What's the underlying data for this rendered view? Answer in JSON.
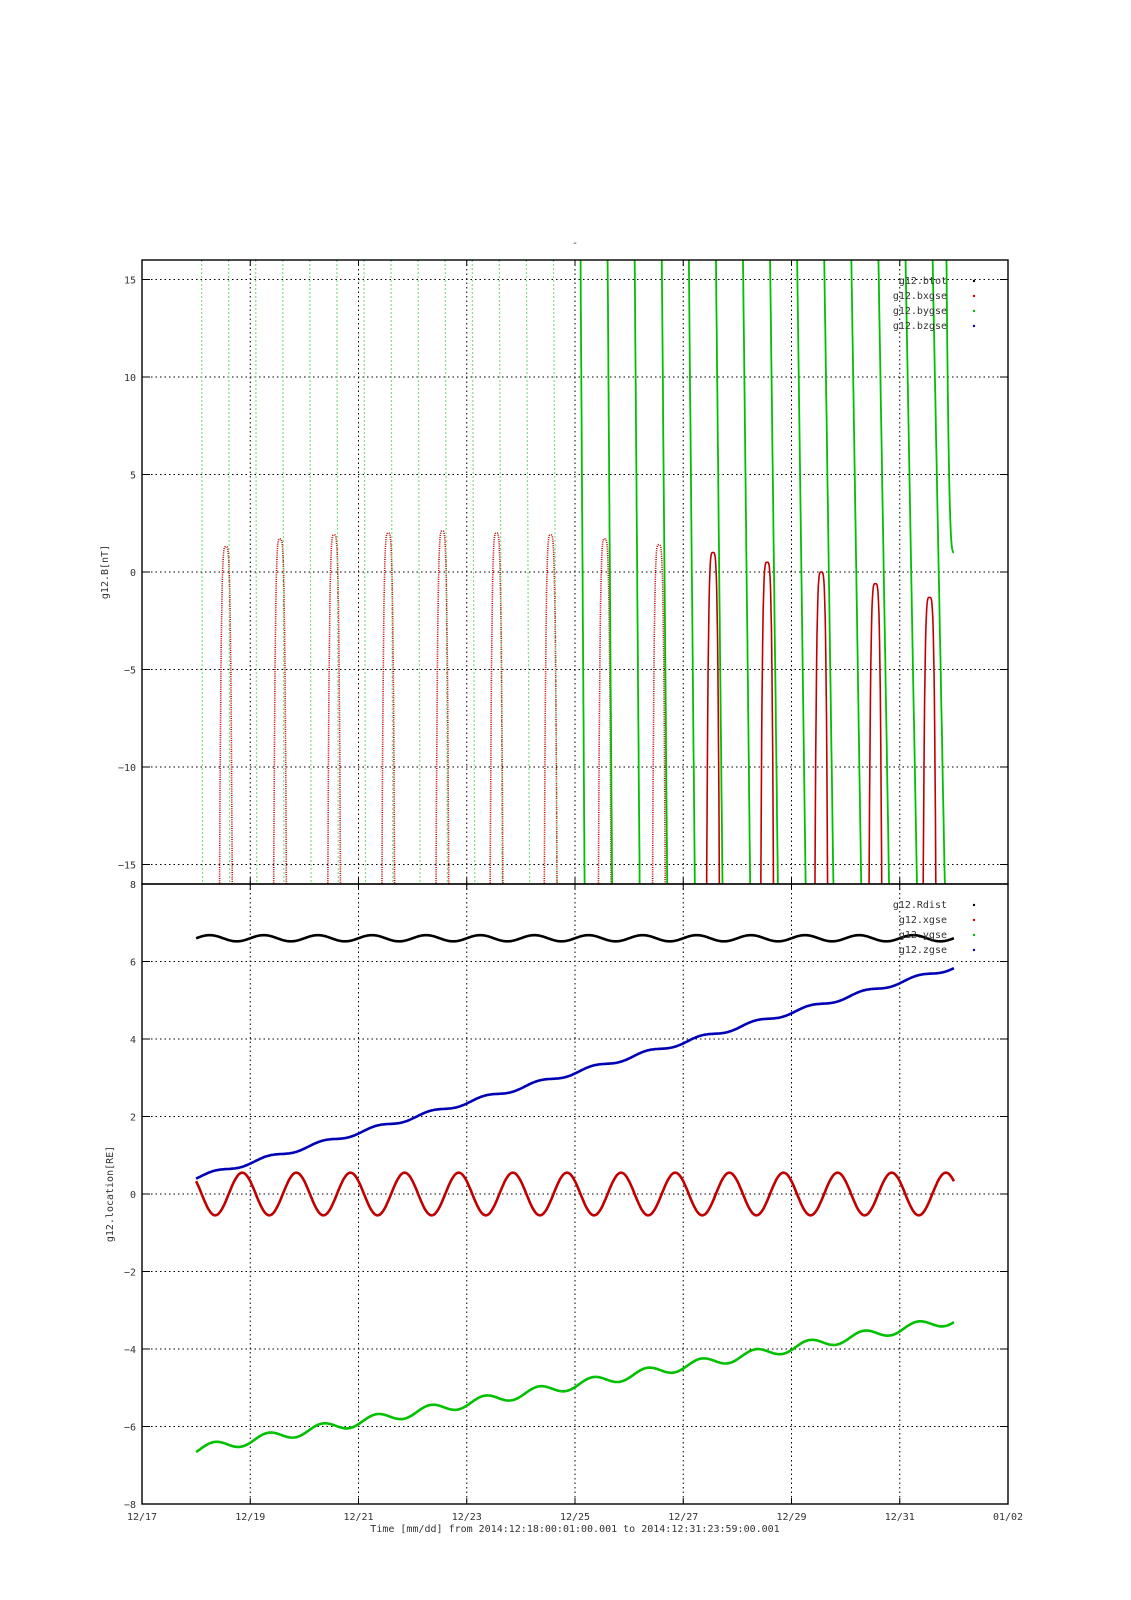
{
  "figure": {
    "title": "-",
    "xlabel": "Time [mm/dd]  from 2014:12:18:00:01:00.001  to  2014:12:31:23:59:00.001",
    "colors": {
      "black": "#000000",
      "red": "#c00000",
      "green": "#00c000",
      "blue": "#0000b4"
    }
  },
  "chart_data": [
    {
      "type": "line",
      "ylabel": "g12.B[nT]",
      "xlim": [
        "12/17",
        "01/02"
      ],
      "ylim": [
        -16,
        16
      ],
      "y_ticks": [
        -15,
        -10,
        -5,
        0,
        5,
        10,
        15
      ],
      "x_ticks": [
        "12/17",
        "12/19",
        "12/21",
        "12/23",
        "12/25",
        "12/27",
        "12/29",
        "12/31",
        "01/02"
      ],
      "grid": true,
      "legend_position": "top-right",
      "series": [
        {
          "name": "g12.btot",
          "color": "black",
          "note": "off-scale (above range)"
        },
        {
          "name": "g12.bxgse",
          "color": "red",
          "peaks": [
            {
              "date": "12/18",
              "value": 1.3
            },
            {
              "date": "12/19",
              "value": 1.7
            },
            {
              "date": "12/20",
              "value": 1.9
            },
            {
              "date": "12/21",
              "value": 2.0
            },
            {
              "date": "12/22",
              "value": 2.1
            },
            {
              "date": "12/23",
              "value": 2.0
            },
            {
              "date": "12/24",
              "value": 1.9
            },
            {
              "date": "12/25",
              "value": 1.7
            },
            {
              "date": "12/26",
              "value": 1.4
            },
            {
              "date": "12/27",
              "value": 1.0
            },
            {
              "date": "12/28",
              "value": 0.5
            },
            {
              "date": "12/29",
              "value": 0.0
            },
            {
              "date": "12/30",
              "value": -0.6
            },
            {
              "date": "12/31",
              "value": -1.3
            }
          ]
        },
        {
          "name": "g12.bygse",
          "color": "green",
          "end_value": 1.0
        },
        {
          "name": "g12.bzgse",
          "color": "blue",
          "note": "off-scale"
        }
      ]
    },
    {
      "type": "line",
      "ylabel": "g12.location[RE]",
      "xlim": [
        "12/17",
        "01/02"
      ],
      "ylim": [
        -8,
        8
      ],
      "y_ticks": [
        -8,
        -6,
        -4,
        -2,
        0,
        2,
        4,
        6,
        8
      ],
      "x_ticks": [
        "12/17",
        "12/19",
        "12/21",
        "12/23",
        "12/25",
        "12/27",
        "12/29",
        "12/31",
        "01/02"
      ],
      "x_tick_labels": [
        "12/17",
        "12/19",
        "12/21",
        "12/23",
        "12/25",
        "12/27",
        "12/29",
        "12/31",
        "01/02"
      ],
      "grid": true,
      "legend_position": "top-right",
      "series": [
        {
          "name": "g12.Rdist",
          "color": "black",
          "mean": 6.6,
          "amplitude": 0.08,
          "period_days": 1
        },
        {
          "name": "g12.xgse",
          "color": "red",
          "mean": 0.0,
          "amplitude": 0.55,
          "period_days": 1
        },
        {
          "name": "g12.ygse",
          "color": "green",
          "start": -6.6,
          "end": -3.25,
          "amplitude": 0.12,
          "period_days": 1
        },
        {
          "name": "g12.zgse",
          "color": "blue",
          "start": 0.42,
          "end": 5.85,
          "amplitude": 0.05,
          "period_days": 1
        }
      ]
    }
  ]
}
